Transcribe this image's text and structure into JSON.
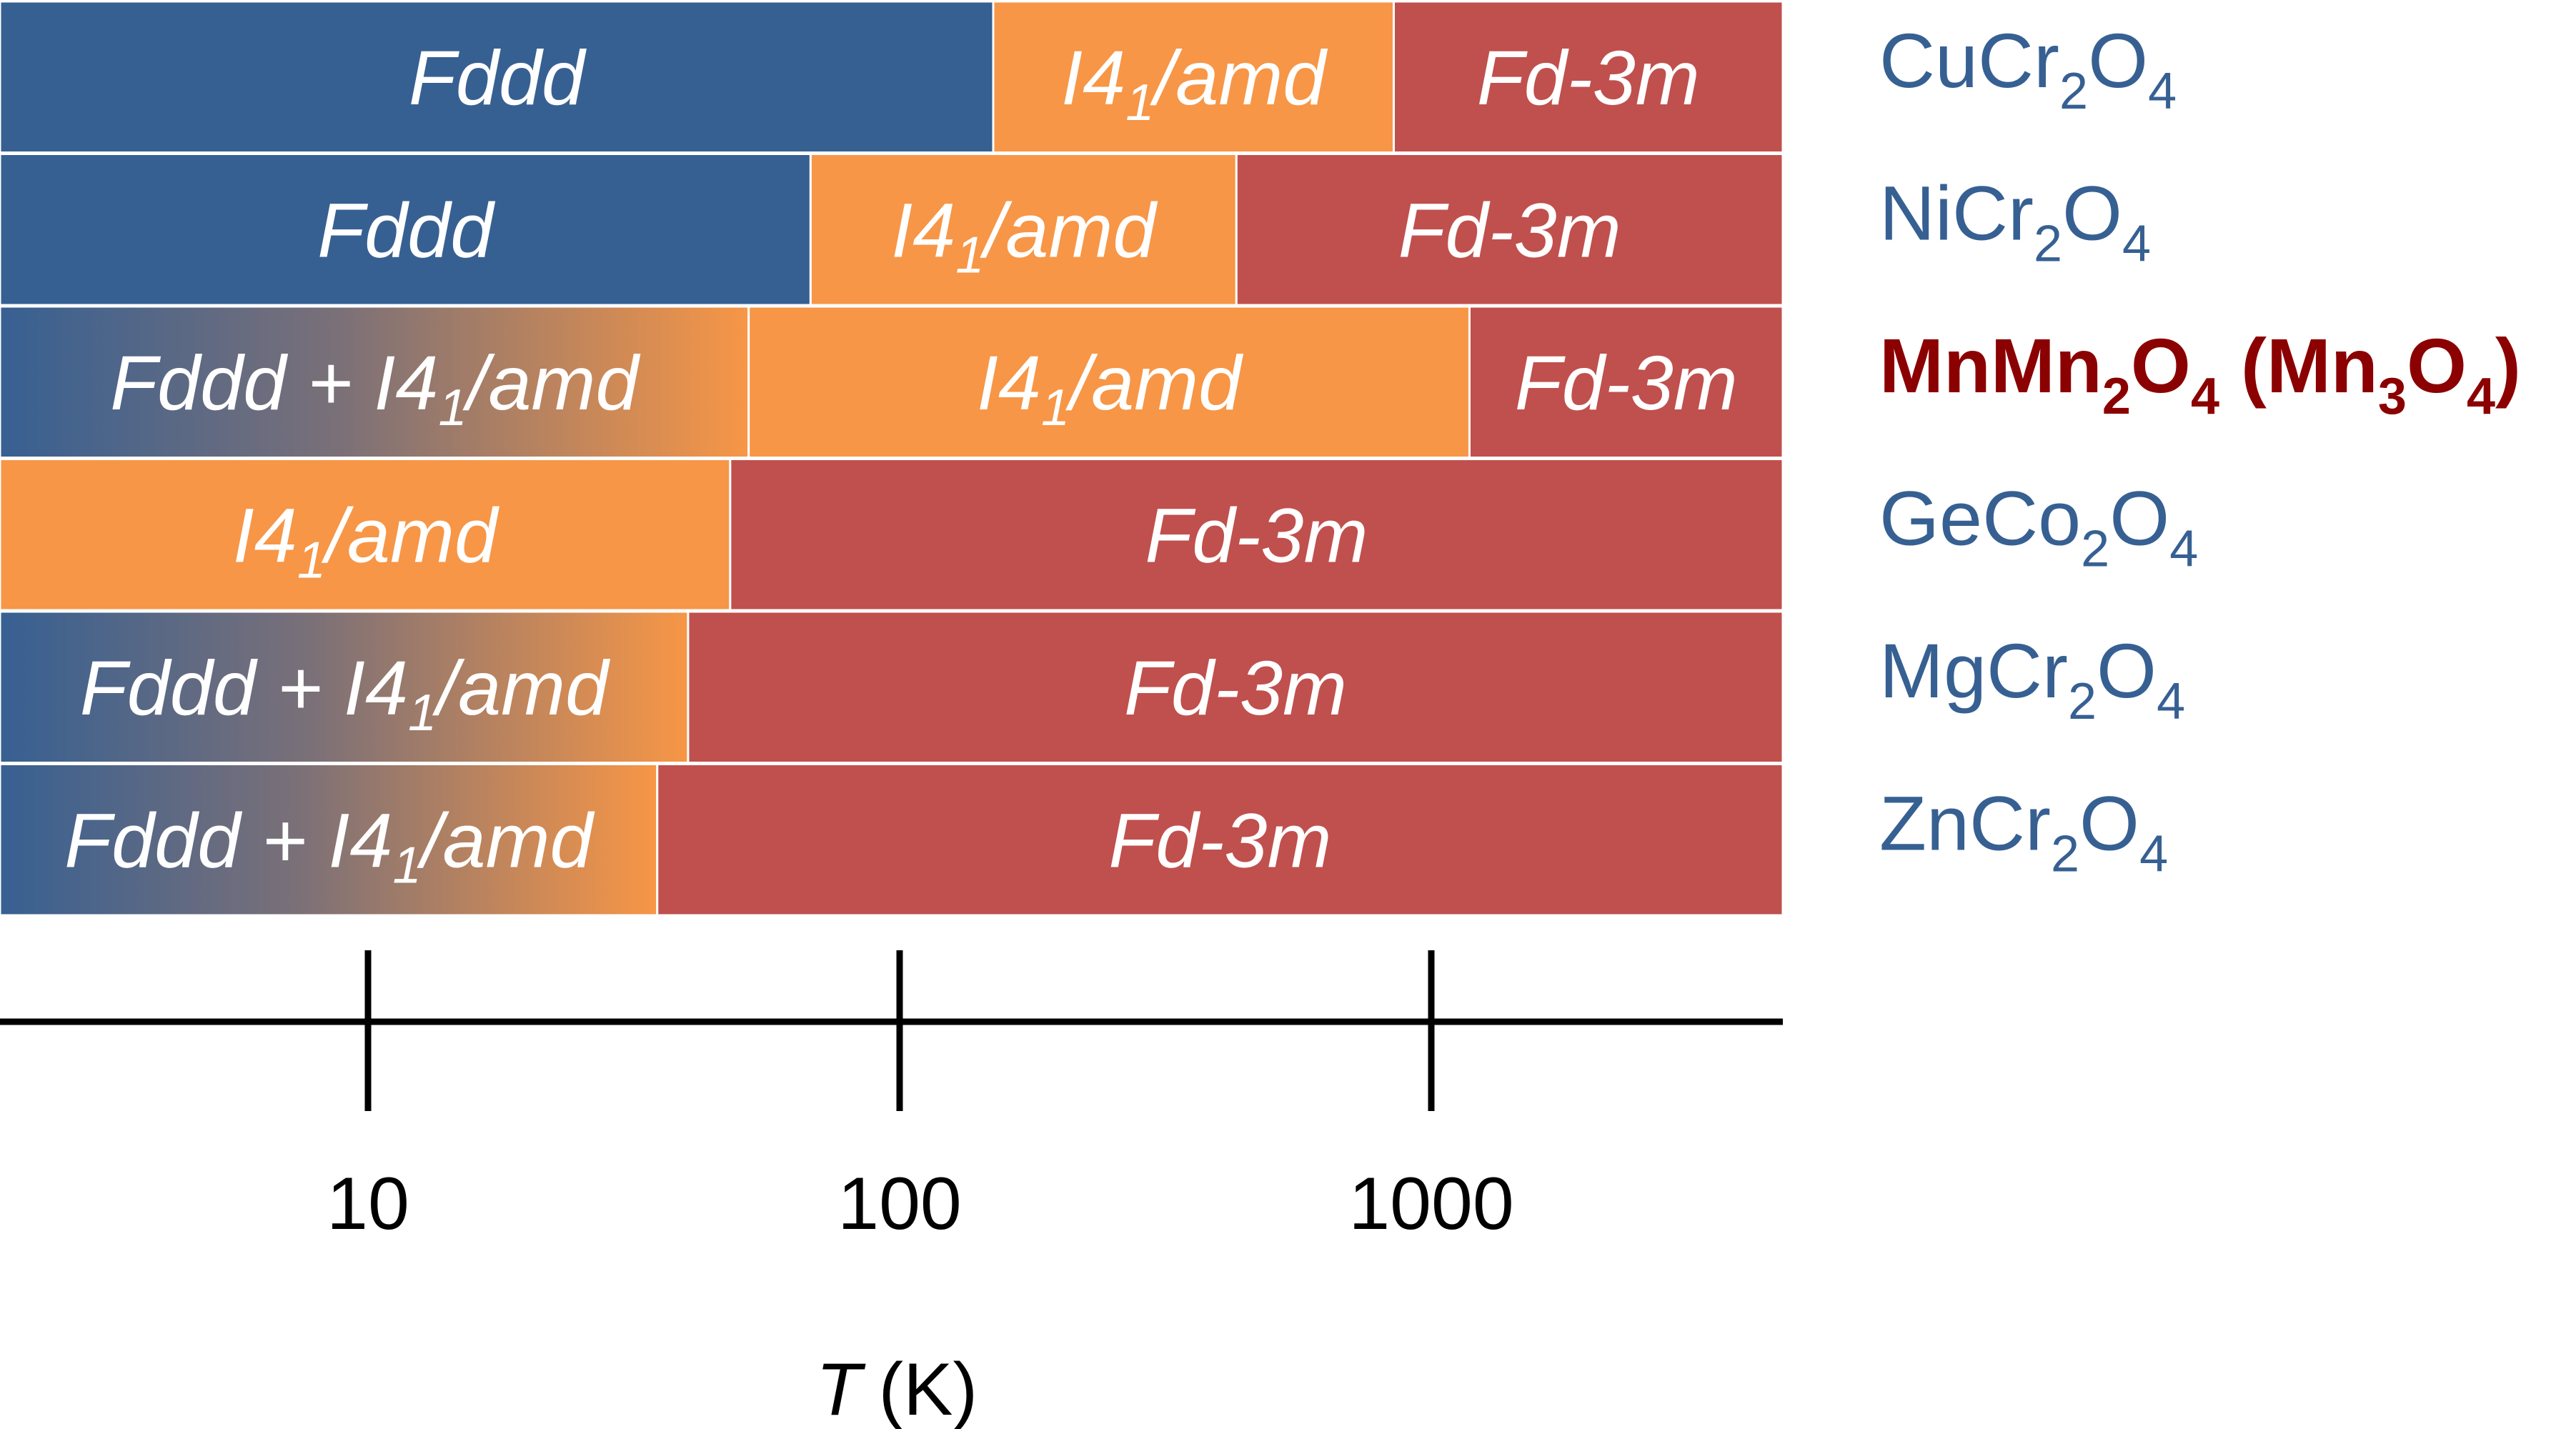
{
  "chart_data": {
    "type": "bar",
    "orientation": "horizontal-stacked",
    "xscale": "log",
    "xlabel_prefix": "T",
    "xlabel_unit": "(K)",
    "xticks": [
      10,
      100,
      1000
    ],
    "xtick_labels": [
      "10",
      "100",
      "1000"
    ],
    "xlim": [
      1.0,
      5000
    ],
    "colors": {
      "Fddd": "#376092",
      "I41/amd": "#F79646",
      "Fd-3m": "#C0504D",
      "Fddd + I41/amd": "gradient"
    },
    "rows": [
      {
        "name": "CuCr2O4",
        "label_base": "CuCr",
        "label_sub1": "2",
        "label_mid": "O",
        "label_sub2": "4",
        "label_suffix": "",
        "label_suffix_sub": "",
        "label_suffix_end": "",
        "color": "#376092",
        "bold": false,
        "segments": [
          {
            "phase": "Fddd",
            "from": 1.0,
            "to": 150,
            "label_main": "Fddd",
            "label_sub": "",
            "label_rest": ""
          },
          {
            "phase": "I41/amd",
            "from": 150,
            "to": 850,
            "label_main": "I4",
            "label_sub": "1",
            "label_rest": "/amd"
          },
          {
            "phase": "Fd-3m",
            "from": 850,
            "to": 5000,
            "label_main": "Fd-3m",
            "label_sub": "",
            "label_rest": ""
          }
        ]
      },
      {
        "name": "NiCr2O4",
        "label_base": "NiCr",
        "label_sub1": "2",
        "label_mid": "O",
        "label_sub2": "4",
        "label_suffix": "",
        "label_suffix_sub": "",
        "label_suffix_end": "",
        "color": "#376092",
        "bold": false,
        "segments": [
          {
            "phase": "Fddd",
            "from": 1.0,
            "to": 68,
            "label_main": "Fddd",
            "label_sub": "",
            "label_rest": ""
          },
          {
            "phase": "I41/amd",
            "from": 68,
            "to": 430,
            "label_main": "I4",
            "label_sub": "1",
            "label_rest": "/amd"
          },
          {
            "phase": "Fd-3m",
            "from": 430,
            "to": 5000,
            "label_main": "Fd-3m",
            "label_sub": "",
            "label_rest": ""
          }
        ]
      },
      {
        "name": "MnMn2O4 (Mn3O4)",
        "label_base": "MnMn",
        "label_sub1": "2",
        "label_mid": "O",
        "label_sub2": "4",
        "label_suffix": " (Mn",
        "label_suffix_sub": "3",
        "label_suffix_mid": "O",
        "label_suffix_sub2": "4",
        "label_suffix_end": ")",
        "color": "#8B0000",
        "bold": true,
        "segments": [
          {
            "phase": "Fddd + I41/amd",
            "from": 1.0,
            "to": 52,
            "label_main": "Fddd + I4",
            "label_sub": "1",
            "label_rest": "/amd"
          },
          {
            "phase": "I41/amd",
            "from": 52,
            "to": 1180,
            "label_main": "I4",
            "label_sub": "1",
            "label_rest": "/amd"
          },
          {
            "phase": "Fd-3m",
            "from": 1180,
            "to": 5000,
            "label_main": "Fd-3m",
            "label_sub": "",
            "label_rest": ""
          }
        ]
      },
      {
        "name": "GeCo2O4",
        "label_base": "GeCo",
        "label_sub1": "2",
        "label_mid": "O",
        "label_sub2": "4",
        "label_suffix": "",
        "label_suffix_sub": "",
        "label_suffix_end": "",
        "color": "#376092",
        "bold": false,
        "segments": [
          {
            "phase": "I41/amd",
            "from": 1.0,
            "to": 48,
            "label_main": "I4",
            "label_sub": "1",
            "label_rest": "/amd"
          },
          {
            "phase": "Fd-3m",
            "from": 48,
            "to": 5000,
            "label_main": "Fd-3m",
            "label_sub": "",
            "label_rest": ""
          }
        ]
      },
      {
        "name": "MgCr2O4",
        "label_base": "MgCr",
        "label_sub1": "2",
        "label_mid": "O",
        "label_sub2": "4",
        "label_suffix": "",
        "label_suffix_sub": "",
        "label_suffix_end": "",
        "color": "#376092",
        "bold": false,
        "segments": [
          {
            "phase": "Fddd + I41/amd",
            "from": 1.0,
            "to": 40,
            "label_main": "Fddd + I4",
            "label_sub": "1",
            "label_rest": "/amd"
          },
          {
            "phase": "Fd-3m",
            "from": 40,
            "to": 5000,
            "label_main": "Fd-3m",
            "label_sub": "",
            "label_rest": ""
          }
        ]
      },
      {
        "name": "ZnCr2O4",
        "label_base": "ZnCr",
        "label_sub1": "2",
        "label_mid": "O",
        "label_sub2": "4",
        "label_suffix": "",
        "label_suffix_sub": "",
        "label_suffix_end": "",
        "color": "#376092",
        "bold": false,
        "segments": [
          {
            "phase": "Fddd + I41/amd",
            "from": 1.0,
            "to": 35,
            "label_main": "Fddd + I4",
            "label_sub": "1",
            "label_rest": "/amd"
          },
          {
            "phase": "Fd-3m",
            "from": 35,
            "to": 5000,
            "label_main": "Fd-3m",
            "label_sub": "",
            "label_rest": ""
          }
        ]
      }
    ]
  }
}
